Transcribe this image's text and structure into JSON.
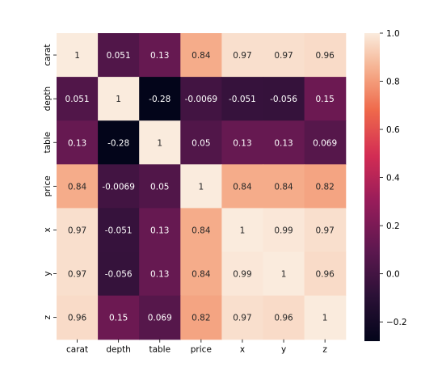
{
  "chart_data": {
    "type": "heatmap",
    "title": "",
    "xlabel": "",
    "ylabel": "",
    "x_labels": [
      "carat",
      "depth",
      "table",
      "price",
      "x",
      "y",
      "z"
    ],
    "y_labels": [
      "carat",
      "depth",
      "table",
      "price",
      "x",
      "y",
      "z"
    ],
    "values": [
      [
        1,
        0.051,
        0.13,
        0.84,
        0.97,
        0.97,
        0.96
      ],
      [
        0.051,
        1,
        -0.28,
        -0.0069,
        -0.051,
        -0.056,
        0.15
      ],
      [
        0.13,
        -0.28,
        1,
        0.05,
        0.13,
        0.13,
        0.069
      ],
      [
        0.84,
        -0.0069,
        0.05,
        1,
        0.84,
        0.84,
        0.82
      ],
      [
        0.97,
        -0.051,
        0.13,
        0.84,
        1,
        0.99,
        0.97
      ],
      [
        0.97,
        -0.056,
        0.13,
        0.84,
        0.99,
        1,
        0.96
      ],
      [
        0.96,
        0.15,
        0.069,
        0.82,
        0.97,
        0.96,
        1
      ]
    ],
    "cell_labels": [
      [
        "1",
        "0.051",
        "0.13",
        "0.84",
        "0.97",
        "0.97",
        "0.96"
      ],
      [
        "0.051",
        "1",
        "-0.28",
        "-0.0069",
        "-0.051",
        "-0.056",
        "0.15"
      ],
      [
        "0.13",
        "-0.28",
        "1",
        "0.05",
        "0.13",
        "0.13",
        "0.069"
      ],
      [
        "0.84",
        "-0.0069",
        "0.05",
        "1",
        "0.84",
        "0.84",
        "0.82"
      ],
      [
        "0.97",
        "-0.051",
        "0.13",
        "0.84",
        "1",
        "0.99",
        "0.97"
      ],
      [
        "0.97",
        "-0.056",
        "0.13",
        "0.84",
        "0.99",
        "1",
        "0.96"
      ],
      [
        "0.96",
        "0.15",
        "0.069",
        "0.82",
        "0.97",
        "0.96",
        "1"
      ]
    ],
    "colormap": "rocket",
    "value_range": [
      -0.28,
      1.0
    ],
    "colorbar": {
      "ticks": [
        1.0,
        0.8,
        0.6,
        0.4,
        0.2,
        0.0,
        -0.2
      ],
      "tick_labels": [
        "1.0",
        "0.8",
        "0.6",
        "0.4",
        "0.2",
        "0.0",
        "−0.2"
      ],
      "placement": "right"
    },
    "grid": false
  }
}
